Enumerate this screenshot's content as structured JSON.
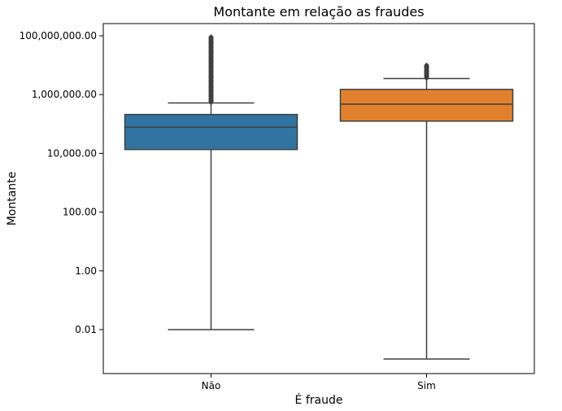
{
  "chart_data": {
    "type": "box",
    "title": "Montante em relação as fraudes",
    "xlabel": "É fraude",
    "ylabel": "Montante",
    "yscale": "log",
    "ylim": [
      0.0025,
      250000000
    ],
    "yticks": [
      {
        "value": 0.01,
        "label": "0.01"
      },
      {
        "value": 1,
        "label": "1.00"
      },
      {
        "value": 100,
        "label": "100.00"
      },
      {
        "value": 10000,
        "label": "10,000.00"
      },
      {
        "value": 1000000,
        "label": "1,000,000.00"
      },
      {
        "value": 100000000,
        "label": "100,000,000.00"
      }
    ],
    "categories": [
      "Não",
      "Sim"
    ],
    "boxes": [
      {
        "category": "Não",
        "color": "#3274a1",
        "whisker_low": 0.01,
        "q1": 13500,
        "median": 78000,
        "q3": 210000,
        "whisker_high": 520000,
        "outliers_range": [
          540000,
          92000000
        ]
      },
      {
        "category": "Sim",
        "color": "#e1812c",
        "whisker_low": 0.001,
        "q1": 125000,
        "median": 470000,
        "q3": 1500000,
        "whisker_high": 3500000,
        "outliers_range": [
          3600000,
          10000000
        ]
      }
    ]
  }
}
